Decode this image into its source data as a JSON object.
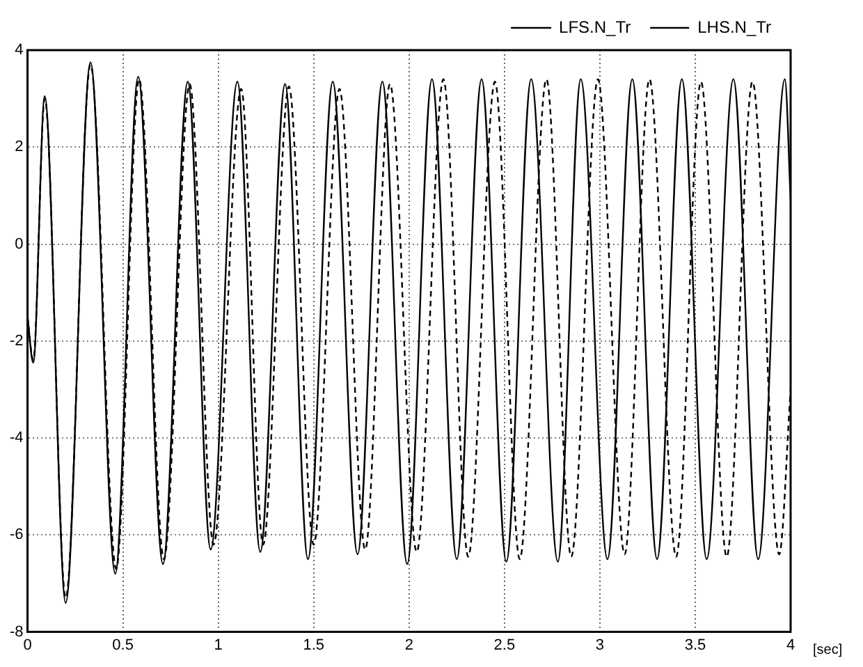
{
  "chart_data": {
    "type": "line",
    "xlabel": "[sec]",
    "xlim": [
      0,
      4
    ],
    "xticks": [
      0,
      0.5,
      1,
      1.5,
      2,
      2.5,
      3,
      3.5,
      4
    ],
    "ylim": [
      -8,
      4
    ],
    "yticks": [
      -8,
      -6,
      -4,
      -2,
      0,
      2,
      4
    ],
    "grid": true,
    "legend": "top right",
    "marker": "none",
    "series": [
      {
        "name": "LFS.N_Tr",
        "color": "#000000",
        "line_style": "solid",
        "x": [
          0,
          0.03,
          0.09,
          0.2,
          0.33,
          0.46,
          0.58,
          0.71,
          0.84,
          0.96,
          1.1,
          1.22,
          1.35,
          1.47,
          1.6,
          1.73,
          1.86,
          1.99,
          2.12,
          2.25,
          2.38,
          2.51,
          2.64,
          2.78,
          2.9,
          3.04,
          3.17,
          3.3,
          3.43,
          3.56,
          3.7,
          3.83,
          3.97,
          4
        ],
        "values": [
          -1.5,
          -2.45,
          3.05,
          -7.4,
          3.75,
          -6.8,
          3.45,
          -6.6,
          3.35,
          -6.3,
          3.35,
          -6.35,
          3.3,
          -6.5,
          3.35,
          -6.4,
          3.35,
          -6.6,
          3.4,
          -6.5,
          3.4,
          -6.55,
          3.4,
          -6.55,
          3.4,
          -6.5,
          3.4,
          -6.5,
          3.4,
          -6.5,
          3.4,
          -6.5,
          3.4,
          0.9
        ]
      },
      {
        "name": "LHS.N_Tr",
        "color": "#000000",
        "line_style": "dashed",
        "x": [
          0,
          0.03,
          0.09,
          0.2,
          0.33,
          0.465,
          0.585,
          0.715,
          0.85,
          0.975,
          1.12,
          1.235,
          1.37,
          1.5,
          1.635,
          1.77,
          1.9,
          2.04,
          2.18,
          2.31,
          2.45,
          2.58,
          2.72,
          2.85,
          2.99,
          3.13,
          3.26,
          3.4,
          3.53,
          3.665,
          3.8,
          3.94,
          4
        ],
        "values": [
          -1.5,
          -2.4,
          3,
          -7.3,
          3.7,
          -6.7,
          3.4,
          -6.5,
          3.3,
          -6.2,
          3.2,
          -6.2,
          3.25,
          -6.2,
          3.2,
          -6.3,
          3.3,
          -6.35,
          3.4,
          -6.45,
          3.35,
          -6.5,
          3.4,
          -6.45,
          3.4,
          -6.4,
          3.4,
          -6.45,
          3.35,
          -6.45,
          3.35,
          -6.4,
          -3
        ]
      }
    ]
  }
}
